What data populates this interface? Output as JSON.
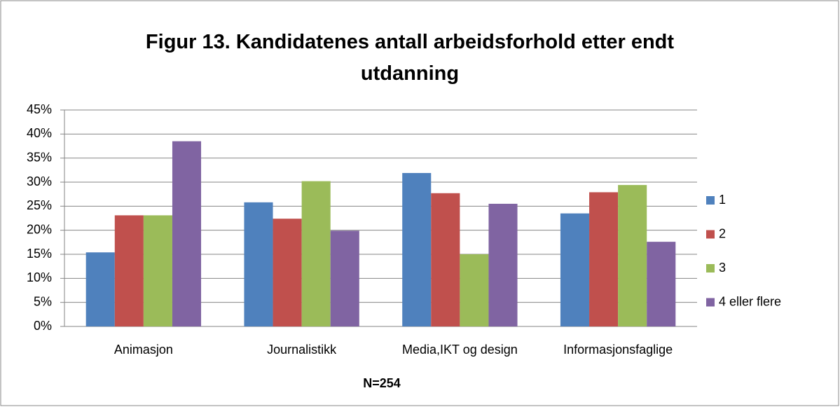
{
  "chart_data": {
    "type": "bar",
    "title": "Figur 13. Kandidatenes antall arbeidsforhold etter endt utdanning",
    "annotation": "N=254",
    "categories": [
      "Animasjon",
      "Journalistikk",
      "Media,IKT og design",
      "Informasjonsfaglige"
    ],
    "series": [
      {
        "name": "1",
        "color": "#4f81bd",
        "values": [
          15.4,
          25.8,
          31.9,
          23.5
        ]
      },
      {
        "name": "2",
        "color": "#c0504d",
        "values": [
          23.1,
          22.4,
          27.7,
          27.9
        ]
      },
      {
        "name": "3",
        "color": "#9bbb59",
        "values": [
          23.1,
          30.2,
          15.0,
          29.4
        ]
      },
      {
        "name": "4 eller flere",
        "color": "#8064a2",
        "values": [
          38.5,
          19.9,
          25.5,
          17.6
        ]
      }
    ],
    "ylim": [
      0,
      45
    ],
    "yticks": [
      {
        "value": 0,
        "label": "0%"
      },
      {
        "value": 5,
        "label": "5%"
      },
      {
        "value": 10,
        "label": "10%"
      },
      {
        "value": 15,
        "label": "15%"
      },
      {
        "value": 20,
        "label": "20%"
      },
      {
        "value": 25,
        "label": "25%"
      },
      {
        "value": 30,
        "label": "30%"
      },
      {
        "value": 35,
        "label": "35%"
      },
      {
        "value": 40,
        "label": "40%"
      },
      {
        "value": 45,
        "label": "45%"
      }
    ],
    "grid": true,
    "legend": "right"
  }
}
